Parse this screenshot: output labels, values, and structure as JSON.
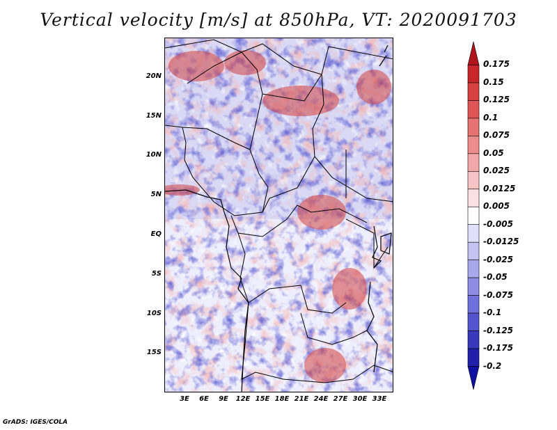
{
  "title": "Vertical velocity [m/s] at 850hPa, VT: 2020091703",
  "credit": "GrADS: IGES/COLA",
  "map": {
    "region": "Central Africa",
    "lat_labels": [
      "20N",
      "15N",
      "10N",
      "5N",
      "EQ",
      "5S",
      "10S",
      "15S"
    ],
    "lon_labels": [
      "3E",
      "6E",
      "9E",
      "12E",
      "15E",
      "18E",
      "21E",
      "24E",
      "27E",
      "30E",
      "33E"
    ]
  },
  "colorbar": {
    "labels": [
      "0.175",
      "0.15",
      "0.125",
      "0.1",
      "0.075",
      "0.05",
      "0.025",
      "0.0125",
      "0.005",
      "-0.005",
      "-0.0125",
      "-0.025",
      "-0.05",
      "-0.075",
      "-0.1",
      "-0.125",
      "-0.175",
      "-0.2"
    ],
    "colors": [
      "#b0141c",
      "#c8262a",
      "#d6403e",
      "#e05656",
      "#e67272",
      "#ec8c8c",
      "#f2a8a8",
      "#f6c4c4",
      "#fae0e0",
      "#ffffff",
      "#e0e0fa",
      "#c4c4f2",
      "#a8a8ec",
      "#8c8ce4",
      "#7070dc",
      "#5454cc",
      "#3838bc",
      "#2020aa",
      "#1010a0"
    ]
  },
  "palette": {
    "pos_strong": "#d24444",
    "pos_weak": "#f4b8b8",
    "neg_weak": "#c8c8f2",
    "neg_strong": "#6e6ed8",
    "neutral": "#ffffff"
  }
}
